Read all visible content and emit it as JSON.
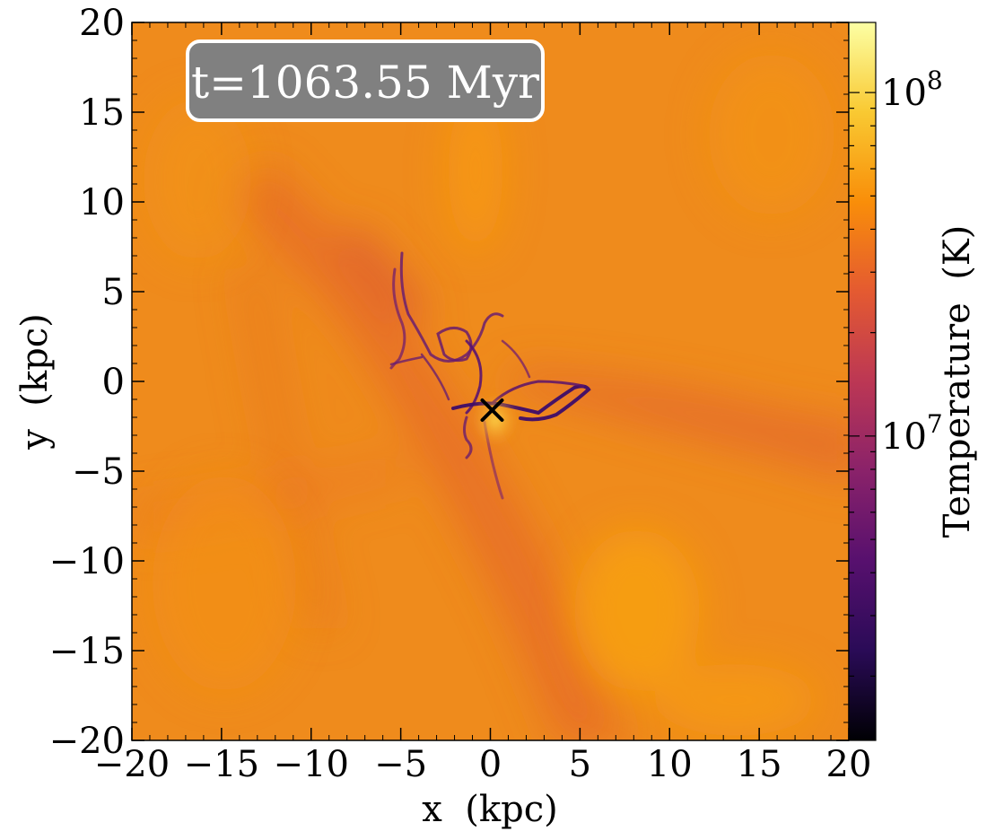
{
  "chart_data": {
    "type": "heatmap",
    "title": "",
    "annotation": "t=1063.55 Myr",
    "xlabel": "x  (kpc)",
    "ylabel": "y  (kpc)",
    "xlim": [
      -20,
      20
    ],
    "ylim": [
      -20,
      20
    ],
    "x_ticks": [
      {
        "value": -20,
        "label": "−20"
      },
      {
        "value": -15,
        "label": "−15"
      },
      {
        "value": -10,
        "label": "−10"
      },
      {
        "value": -5,
        "label": "−5"
      },
      {
        "value": 0,
        "label": "0"
      },
      {
        "value": 5,
        "label": "5"
      },
      {
        "value": 10,
        "label": "10"
      },
      {
        "value": 15,
        "label": "15"
      },
      {
        "value": 20,
        "label": "20"
      }
    ],
    "y_ticks": [
      {
        "value": -20,
        "label": "−20"
      },
      {
        "value": -15,
        "label": "−15"
      },
      {
        "value": -10,
        "label": "−10"
      },
      {
        "value": -5,
        "label": "−5"
      },
      {
        "value": 0,
        "label": "0"
      },
      {
        "value": 5,
        "label": "5"
      },
      {
        "value": 10,
        "label": "10"
      },
      {
        "value": 15,
        "label": "15"
      },
      {
        "value": 20,
        "label": "20"
      }
    ],
    "colorbar": {
      "label": "Temperature  (K)",
      "scale": "log",
      "range": [
        1300000.0,
        160000000.0
      ],
      "colormap": "inferno",
      "ticks": [
        {
          "value": 10000000.0,
          "label": "10",
          "exp": "7"
        },
        {
          "value": 100000000.0,
          "label": "10",
          "exp": "8"
        }
      ]
    },
    "marker": {
      "symbol": "x",
      "x": 0.1,
      "y": -1.6,
      "color": "#000000"
    },
    "background_color": "#ef8c1a",
    "colormap_stops": [
      "#000004",
      "#2a0b57",
      "#57106e",
      "#8a226a",
      "#bc3754",
      "#e45a31",
      "#f98e09",
      "#f9c932",
      "#fcffa4"
    ]
  }
}
